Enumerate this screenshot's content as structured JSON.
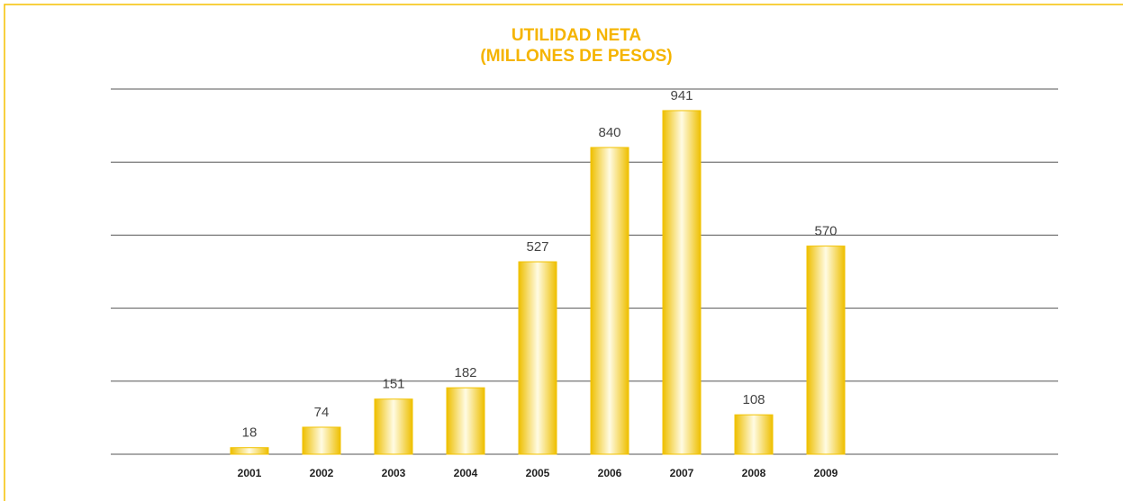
{
  "chart_data": {
    "type": "bar",
    "title": "UTILIDAD NETA",
    "subtitle": "(MILLONES DE PESOS)",
    "categories": [
      "2001",
      "2002",
      "2003",
      "2004",
      "2005",
      "2006",
      "2007",
      "2008",
      "2009"
    ],
    "values": [
      18,
      74,
      151,
      182,
      527,
      840,
      941,
      108,
      570
    ],
    "color": "#f2c200",
    "ylim": [
      0,
      1000
    ],
    "yticks": [
      0,
      200,
      400,
      600,
      800,
      1000
    ],
    "grid": true
  }
}
